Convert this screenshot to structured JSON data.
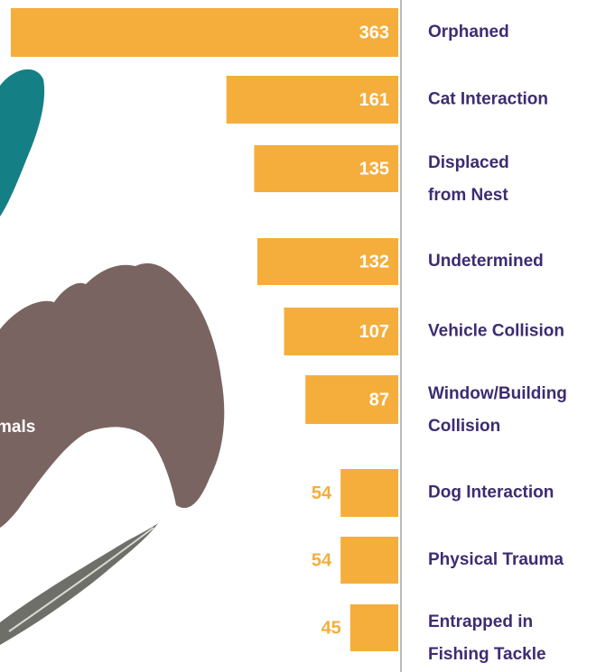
{
  "chart_data": {
    "type": "hbar",
    "categories": [
      "Orphaned",
      "Cat Interaction",
      "Displaced\nfrom Nest",
      "Undetermined",
      "Vehicle Collision",
      "Window/Building\nCollision",
      "Dog Interaction",
      "Physical Trauma",
      "Entrapped in\nFishing Tackle"
    ],
    "values": [
      363,
      161,
      135,
      132,
      107,
      87,
      54,
      54,
      45
    ],
    "color": "#f5ad3c",
    "annotation": "mals"
  }
}
